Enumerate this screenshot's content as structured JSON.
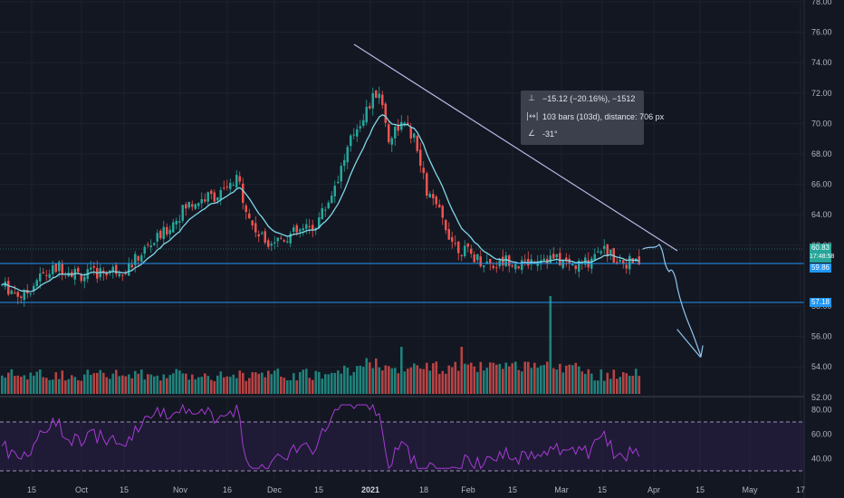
{
  "chart_data": {
    "type": "candlestick",
    "price_axis": {
      "ticks": [
        "78.00",
        "76.00",
        "74.00",
        "72.00",
        "70.00",
        "68.00",
        "66.00",
        "64.00",
        "62.00",
        "58.00",
        "56.00",
        "54.00",
        "52.00"
      ],
      "ylim": [
        51,
        78
      ]
    },
    "rsi_axis": {
      "ticks": [
        "80.00",
        "60.00",
        "40.00"
      ],
      "upper_band": 70,
      "lower_band": 30
    },
    "time_axis": {
      "ticks": [
        "15",
        "Oct",
        "15",
        "Nov",
        "16",
        "Dec",
        "15",
        "2021",
        "18",
        "Feb",
        "15",
        "Mar",
        "15",
        "Apr",
        "15",
        "May",
        "17"
      ]
    },
    "price_labels": {
      "last": {
        "value": "60.83",
        "countdown": "17:48:58",
        "color": "#26a69a"
      },
      "level_1": {
        "value": "59.86",
        "color": "#2196f3"
      },
      "level_2": {
        "value": "57.18",
        "color": "#2196f3"
      }
    },
    "horizontal_levels": [
      59.86,
      57.18
    ],
    "trendline": {
      "from": {
        "date": "2020-12-26",
        "price": 74.8
      },
      "to": {
        "date": "2021-03-31",
        "price": 60.8
      },
      "color": "#b7b9e6"
    },
    "projection": {
      "color": "#8fc6ef",
      "description_points_price": [
        60.7,
        59.6,
        58.3,
        55.4,
        53.5
      ]
    },
    "series": [
      {
        "name": "EMA",
        "color": "#7fd7e8"
      },
      {
        "name": "RSI",
        "color": "#a53bd3"
      },
      {
        "name": "Volume",
        "up_color": "#26a69a",
        "down_color": "#ef5350"
      }
    ],
    "colors": {
      "up": "#26a69a",
      "down": "#ef5350",
      "background": "#131722",
      "rsi_band": "#2a1f47"
    }
  },
  "measure_tool": {
    "price_change": "−15.12 (−20.16%), −1512",
    "bars": "103 bars (103d), distance: 706 px",
    "angle": "-31°",
    "icons": [
      "vertical-range-icon",
      "horizontal-range-icon",
      "angle-icon"
    ]
  }
}
